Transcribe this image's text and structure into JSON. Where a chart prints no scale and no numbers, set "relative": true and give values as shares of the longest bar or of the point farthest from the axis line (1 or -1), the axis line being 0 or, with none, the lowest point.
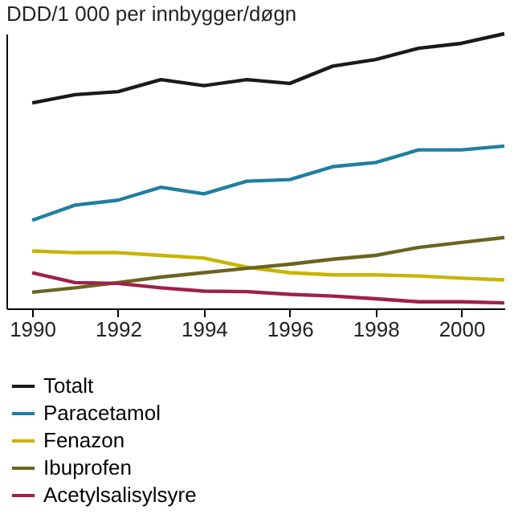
{
  "chart_data": {
    "type": "line",
    "title": "DDD/1 000 per innbygger/døgn",
    "relative": true,
    "x": [
      1990,
      1991,
      1992,
      1993,
      1994,
      1995,
      1996,
      1997,
      1998,
      1999,
      2000,
      2001
    ],
    "xlim": [
      1989.4,
      2001
    ],
    "xticks": [
      1990,
      1992,
      1994,
      1996,
      1998,
      2000
    ],
    "grid": false,
    "legend": "bottom",
    "line_style": "solid",
    "marker": "none",
    "series": [
      {
        "name": "Totalt",
        "color": "#1a1a1a",
        "values": [
          0.748,
          0.778,
          0.789,
          0.833,
          0.811,
          0.833,
          0.819,
          0.882,
          0.906,
          0.947,
          0.965,
          1
        ]
      },
      {
        "name": "Paracetamol",
        "color": "#1f7fa0",
        "values": [
          0.321,
          0.376,
          0.394,
          0.441,
          0.417,
          0.463,
          0.469,
          0.516,
          0.531,
          0.577,
          0.577,
          0.591
        ]
      },
      {
        "name": "Fenazon",
        "color": "#c8b400",
        "values": [
          0.209,
          0.203,
          0.203,
          0.193,
          0.183,
          0.15,
          0.13,
          0.122,
          0.122,
          0.118,
          0.11,
          0.104
        ]
      },
      {
        "name": "Ibuprofen",
        "color": "#6b6420",
        "values": [
          0.059,
          0.075,
          0.094,
          0.114,
          0.13,
          0.146,
          0.161,
          0.179,
          0.193,
          0.222,
          0.24,
          0.258
        ]
      },
      {
        "name": "Acetylsalisylsyre",
        "color": "#a0204a",
        "values": [
          0.13,
          0.094,
          0.091,
          0.075,
          0.063,
          0.061,
          0.051,
          0.045,
          0.035,
          0.024,
          0.024,
          0.02
        ]
      }
    ]
  }
}
